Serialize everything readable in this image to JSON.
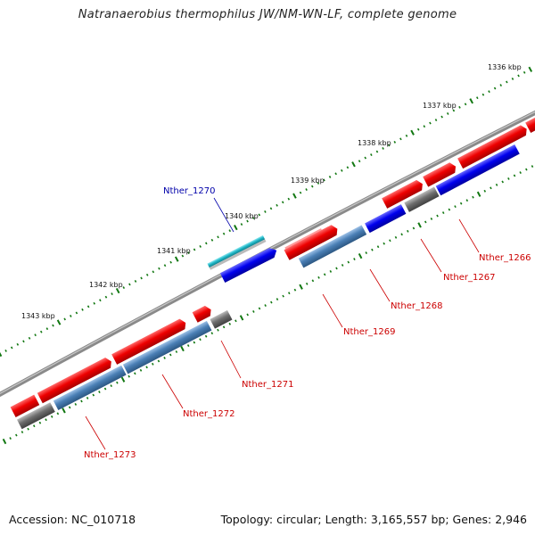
{
  "title": "Natranaerobius thermophilus JW/NM-WN-LF, complete genome",
  "footer": {
    "accession": "Accession: NC_010718",
    "summary": "Topology: circular; Length: 3,165,557 bp; Genes: 2,946"
  },
  "scale_labels": [
    "1336 kbp",
    "1337 kbp",
    "1338 kbp",
    "1339 kbp",
    "1340 kbp",
    "1341 kbp",
    "1342 kbp",
    "1343 kbp"
  ],
  "gene_labels": [
    {
      "name": "Nther_1270",
      "color": "#0000aa"
    },
    {
      "name": "Nther_1266",
      "color": "#cc0000"
    },
    {
      "name": "Nther_1267",
      "color": "#cc0000"
    },
    {
      "name": "Nther_1268",
      "color": "#cc0000"
    },
    {
      "name": "Nther_1269",
      "color": "#cc0000"
    },
    {
      "name": "Nther_1271",
      "color": "#cc0000"
    },
    {
      "name": "Nther_1272",
      "color": "#cc0000"
    },
    {
      "name": "Nther_1273",
      "color": "#cc0000"
    }
  ],
  "feature_colors": {
    "cds": "#ee0000",
    "gene": "#4a7fb5",
    "highlight": "#0000ee",
    "rna": "#20b8c8",
    "other": "#6e6e6e",
    "backbone": "#888888",
    "ticks": "#117711"
  }
}
